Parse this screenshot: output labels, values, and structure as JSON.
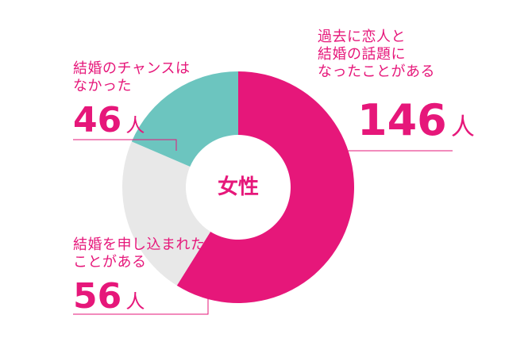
{
  "chart_data": {
    "type": "pie",
    "title": "女性",
    "unit": "人",
    "slices": [
      {
        "lines": [
          "過去に恋人と",
          "結婚の話題に",
          "なったことがある"
        ],
        "value": 146,
        "color": "#e6177a"
      },
      {
        "lines": [
          "結婚を申し込まれた",
          "ことがある"
        ],
        "value": 56,
        "color": "#e8e8e8"
      },
      {
        "lines": [
          "結婚のチャンスは",
          "なかった"
        ],
        "value": 46,
        "color": "#6cc5bf"
      }
    ]
  }
}
